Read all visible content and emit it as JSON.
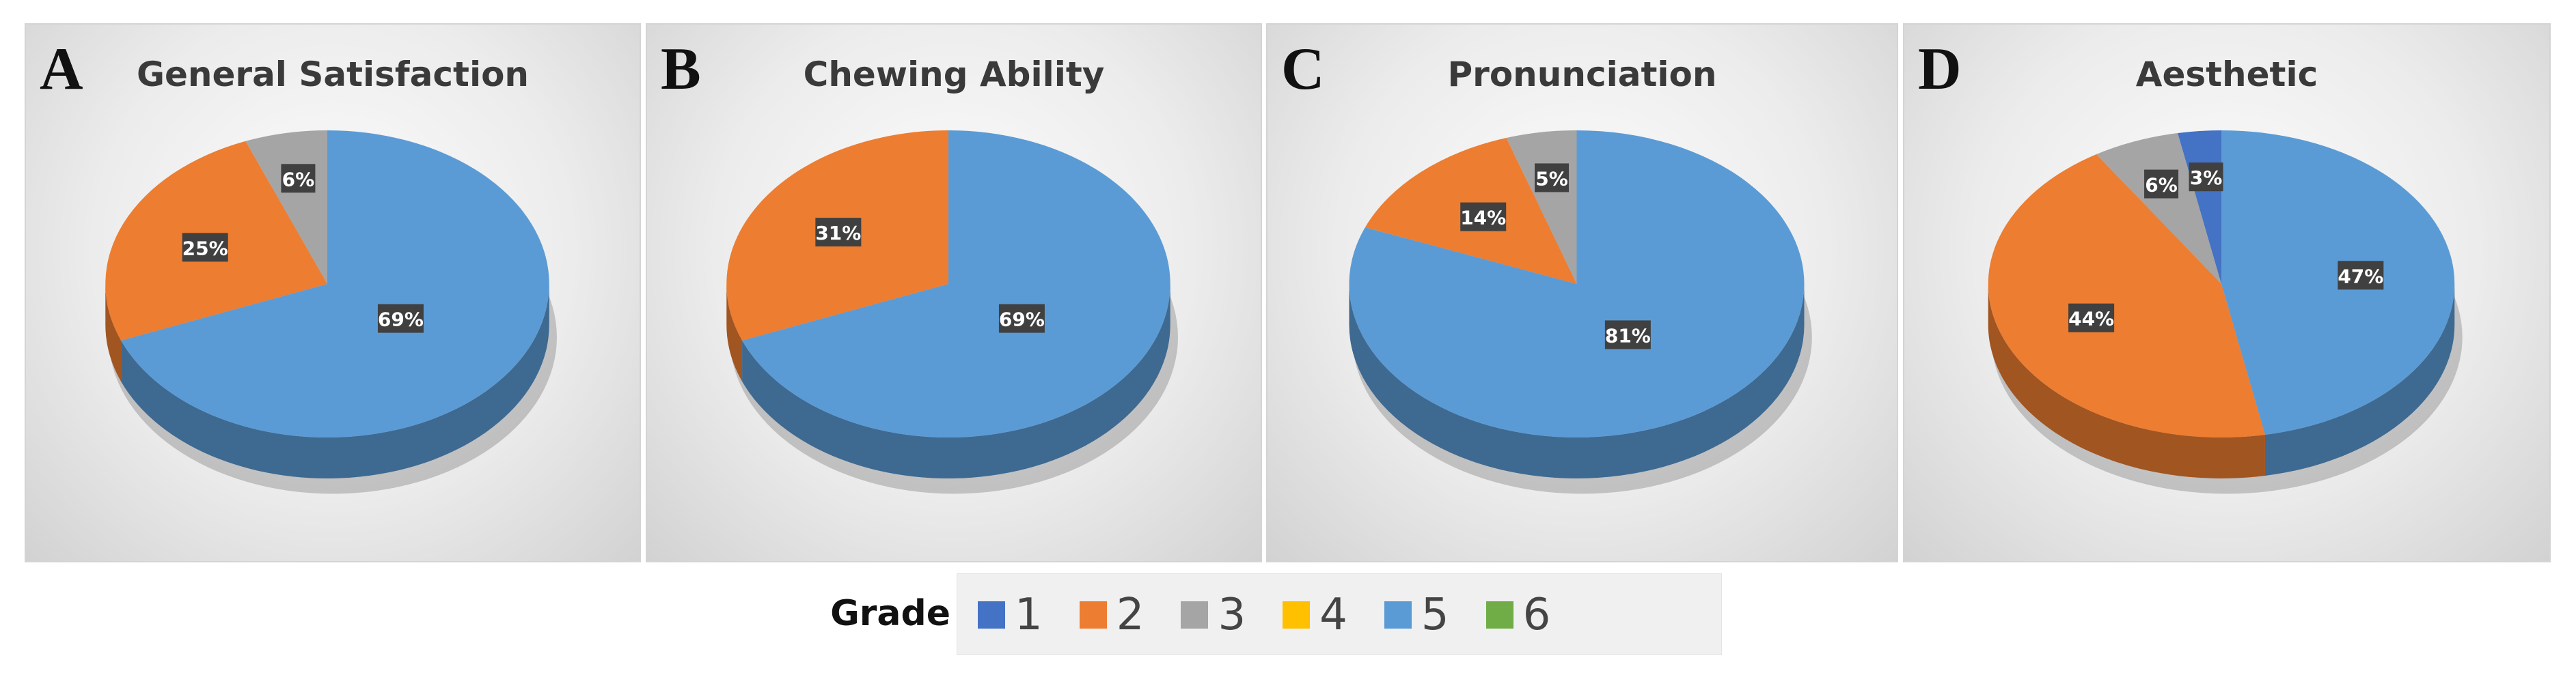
{
  "legend": {
    "title": "Grade",
    "items": [
      {
        "label": "1",
        "color": "#4472c4"
      },
      {
        "label": "2",
        "color": "#ed7d31"
      },
      {
        "label": "3",
        "color": "#a5a5a5"
      },
      {
        "label": "4",
        "color": "#ffc000"
      },
      {
        "label": "5",
        "color": "#5b9bd5"
      },
      {
        "label": "6",
        "color": "#70ad47"
      }
    ]
  },
  "chart_data": [
    {
      "type": "pie",
      "panel": "A",
      "title": "General Satisfaction",
      "slices": [
        {
          "grade": "5",
          "value": 69,
          "label": "69%"
        },
        {
          "grade": "2",
          "value": 25,
          "label": "25%"
        },
        {
          "grade": "3",
          "value": 6,
          "label": "6%"
        }
      ]
    },
    {
      "type": "pie",
      "panel": "B",
      "title": "Chewing Ability",
      "slices": [
        {
          "grade": "5",
          "value": 69,
          "label": "69%"
        },
        {
          "grade": "2",
          "value": 31,
          "label": "31%"
        }
      ]
    },
    {
      "type": "pie",
      "panel": "C",
      "title": "Pronunciation",
      "slices": [
        {
          "grade": "5",
          "value": 81,
          "label": "81%"
        },
        {
          "grade": "2",
          "value": 14,
          "label": "14%"
        },
        {
          "grade": "3",
          "value": 5,
          "label": "5%"
        }
      ]
    },
    {
      "type": "pie",
      "panel": "D",
      "title": "Aesthetic",
      "slices": [
        {
          "grade": "5",
          "value": 47,
          "label": "47%"
        },
        {
          "grade": "2",
          "value": 44,
          "label": "44%"
        },
        {
          "grade": "3",
          "value": 6,
          "label": "6%"
        },
        {
          "grade": "1",
          "value": 3,
          "label": "3%"
        }
      ]
    }
  ]
}
